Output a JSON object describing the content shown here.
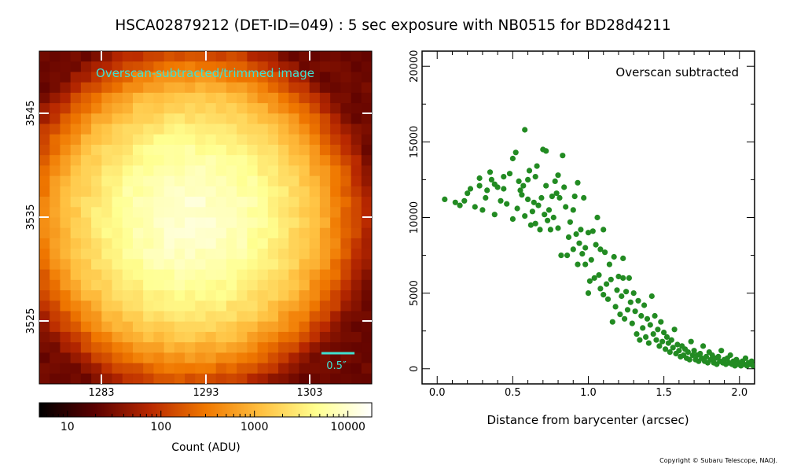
{
  "title": "HSCA02879212 (DET-ID=049) :  5 sec exposure with NB0515 for BD28d4211",
  "copyright": "Copyright © Subaru Telescope, NAOJ.",
  "colors": {
    "scatter": "#228b22",
    "image_label": "#40e0d0",
    "scale_bar": "#40e0d0",
    "colormap": [
      "#000000",
      "#5a0000",
      "#b82800",
      "#f07800",
      "#ffc040",
      "#ffff90",
      "#ffffff"
    ]
  },
  "image_panel": {
    "label": "Overscan-subtracted/trimmed image",
    "scale_bar_label": "0.5″",
    "x_ticks": [
      "1283",
      "1293",
      "1303"
    ],
    "y_ticks": [
      "3545",
      "3535",
      "3525"
    ]
  },
  "colorbar": {
    "label": "Count (ADU)",
    "tick_labels": [
      "10",
      "100",
      "1000",
      "10000"
    ],
    "scale": "log",
    "range": [
      5,
      18000
    ]
  },
  "chart_data": {
    "type": "scatter",
    "title": "",
    "annotation": "Overscan subtracted",
    "xlabel": "Distance from barycenter (arcsec)",
    "ylabel": "",
    "xlim": [
      -0.1,
      2.1
    ],
    "ylim": [
      -1000,
      21000
    ],
    "x_ticks": [
      0.0,
      0.5,
      1.0,
      1.5,
      2.0
    ],
    "x_tick_labels": [
      "0.0",
      "0.5",
      "1.0",
      "1.5",
      "2.0"
    ],
    "y_ticks": [
      0,
      5000,
      10000,
      15000,
      20000
    ],
    "y_tick_labels": [
      "0",
      "5000",
      "10000",
      "15000",
      "20000"
    ],
    "grid": false,
    "points": [
      [
        0.05,
        11200
      ],
      [
        0.12,
        11000
      ],
      [
        0.15,
        10800
      ],
      [
        0.18,
        11100
      ],
      [
        0.2,
        11600
      ],
      [
        0.22,
        11900
      ],
      [
        0.25,
        10700
      ],
      [
        0.28,
        12100
      ],
      [
        0.28,
        12600
      ],
      [
        0.3,
        10500
      ],
      [
        0.32,
        11300
      ],
      [
        0.33,
        11800
      ],
      [
        0.35,
        13000
      ],
      [
        0.36,
        12500
      ],
      [
        0.38,
        10200
      ],
      [
        0.38,
        12200
      ],
      [
        0.4,
        12000
      ],
      [
        0.42,
        11100
      ],
      [
        0.44,
        11900
      ],
      [
        0.44,
        12700
      ],
      [
        0.46,
        10900
      ],
      [
        0.48,
        12900
      ],
      [
        0.5,
        13900
      ],
      [
        0.52,
        14300
      ],
      [
        0.5,
        9900
      ],
      [
        0.53,
        10600
      ],
      [
        0.54,
        12400
      ],
      [
        0.55,
        11800
      ],
      [
        0.56,
        11500
      ],
      [
        0.57,
        12100
      ],
      [
        0.58,
        10100
      ],
      [
        0.58,
        15800
      ],
      [
        0.6,
        11200
      ],
      [
        0.6,
        12500
      ],
      [
        0.61,
        13100
      ],
      [
        0.62,
        9500
      ],
      [
        0.63,
        10400
      ],
      [
        0.64,
        11000
      ],
      [
        0.65,
        9600
      ],
      [
        0.65,
        12700
      ],
      [
        0.66,
        13400
      ],
      [
        0.67,
        10800
      ],
      [
        0.68,
        9200
      ],
      [
        0.69,
        11300
      ],
      [
        0.7,
        14500
      ],
      [
        0.71,
        10200
      ],
      [
        0.72,
        14400
      ],
      [
        0.72,
        12100
      ],
      [
        0.73,
        9800
      ],
      [
        0.74,
        10500
      ],
      [
        0.75,
        9200
      ],
      [
        0.76,
        11400
      ],
      [
        0.77,
        10000
      ],
      [
        0.78,
        12400
      ],
      [
        0.79,
        11600
      ],
      [
        0.8,
        9300
      ],
      [
        0.8,
        12800
      ],
      [
        0.81,
        11300
      ],
      [
        0.82,
        7500
      ],
      [
        0.83,
        14100
      ],
      [
        0.84,
        12000
      ],
      [
        0.85,
        10700
      ],
      [
        0.86,
        7500
      ],
      [
        0.87,
        8700
      ],
      [
        0.88,
        9700
      ],
      [
        0.9,
        10500
      ],
      [
        0.9,
        7900
      ],
      [
        0.91,
        11400
      ],
      [
        0.92,
        8900
      ],
      [
        0.93,
        6900
      ],
      [
        0.93,
        12300
      ],
      [
        0.94,
        8300
      ],
      [
        0.95,
        9200
      ],
      [
        0.96,
        7600
      ],
      [
        0.97,
        11300
      ],
      [
        0.98,
        8000
      ],
      [
        0.98,
        6900
      ],
      [
        1.0,
        5000
      ],
      [
        1.0,
        9000
      ],
      [
        1.01,
        5800
      ],
      [
        1.02,
        7200
      ],
      [
        1.03,
        9100
      ],
      [
        1.04,
        6000
      ],
      [
        1.05,
        8200
      ],
      [
        1.06,
        10000
      ],
      [
        1.07,
        6200
      ],
      [
        1.08,
        5300
      ],
      [
        1.08,
        7900
      ],
      [
        1.1,
        4900
      ],
      [
        1.1,
        9200
      ],
      [
        1.11,
        7700
      ],
      [
        1.12,
        5600
      ],
      [
        1.13,
        4600
      ],
      [
        1.14,
        6900
      ],
      [
        1.15,
        5900
      ],
      [
        1.16,
        3100
      ],
      [
        1.17,
        7400
      ],
      [
        1.18,
        4100
      ],
      [
        1.19,
        5200
      ],
      [
        1.2,
        6100
      ],
      [
        1.21,
        3600
      ],
      [
        1.22,
        4800
      ],
      [
        1.23,
        6000
      ],
      [
        1.23,
        7300
      ],
      [
        1.24,
        3300
      ],
      [
        1.25,
        5100
      ],
      [
        1.26,
        3900
      ],
      [
        1.27,
        6000
      ],
      [
        1.28,
        4400
      ],
      [
        1.29,
        3000
      ],
      [
        1.3,
        5000
      ],
      [
        1.31,
        3800
      ],
      [
        1.32,
        2300
      ],
      [
        1.33,
        4500
      ],
      [
        1.34,
        1900
      ],
      [
        1.35,
        3500
      ],
      [
        1.36,
        2700
      ],
      [
        1.37,
        4200
      ],
      [
        1.38,
        2100
      ],
      [
        1.39,
        3300
      ],
      [
        1.4,
        1700
      ],
      [
        1.41,
        2900
      ],
      [
        1.42,
        4800
      ],
      [
        1.43,
        2300
      ],
      [
        1.44,
        3500
      ],
      [
        1.45,
        1900
      ],
      [
        1.46,
        2600
      ],
      [
        1.47,
        1500
      ],
      [
        1.48,
        3100
      ],
      [
        1.49,
        1800
      ],
      [
        1.5,
        2400
      ],
      [
        1.51,
        1300
      ],
      [
        1.52,
        2100
      ],
      [
        1.53,
        1700
      ],
      [
        1.54,
        1100
      ],
      [
        1.55,
        1900
      ],
      [
        1.56,
        1400
      ],
      [
        1.57,
        2600
      ],
      [
        1.58,
        1000
      ],
      [
        1.59,
        1600
      ],
      [
        1.6,
        1200
      ],
      [
        1.61,
        800
      ],
      [
        1.62,
        1500
      ],
      [
        1.63,
        900
      ],
      [
        1.64,
        1300
      ],
      [
        1.65,
        700
      ],
      [
        1.66,
        1100
      ],
      [
        1.67,
        600
      ],
      [
        1.68,
        1800
      ],
      [
        1.69,
        900
      ],
      [
        1.7,
        1200
      ],
      [
        1.71,
        600
      ],
      [
        1.72,
        900
      ],
      [
        1.73,
        500
      ],
      [
        1.74,
        1000
      ],
      [
        1.75,
        700
      ],
      [
        1.76,
        1500
      ],
      [
        1.77,
        500
      ],
      [
        1.78,
        800
      ],
      [
        1.79,
        400
      ],
      [
        1.8,
        1100
      ],
      [
        1.81,
        600
      ],
      [
        1.82,
        900
      ],
      [
        1.83,
        400
      ],
      [
        1.84,
        700
      ],
      [
        1.85,
        300
      ],
      [
        1.86,
        800
      ],
      [
        1.87,
        500
      ],
      [
        1.88,
        1200
      ],
      [
        1.89,
        400
      ],
      [
        1.9,
        600
      ],
      [
        1.91,
        300
      ],
      [
        1.92,
        700
      ],
      [
        1.93,
        400
      ],
      [
        1.94,
        900
      ],
      [
        1.95,
        300
      ],
      [
        1.96,
        500
      ],
      [
        1.97,
        200
      ],
      [
        1.98,
        600
      ],
      [
        1.99,
        300
      ],
      [
        2.0,
        400
      ],
      [
        2.01,
        200
      ],
      [
        2.02,
        500
      ],
      [
        2.03,
        300
      ],
      [
        2.04,
        700
      ],
      [
        2.05,
        200
      ],
      [
        2.06,
        400
      ],
      [
        2.07,
        300
      ],
      [
        2.08,
        500
      ],
      [
        2.09,
        200
      ]
    ]
  }
}
